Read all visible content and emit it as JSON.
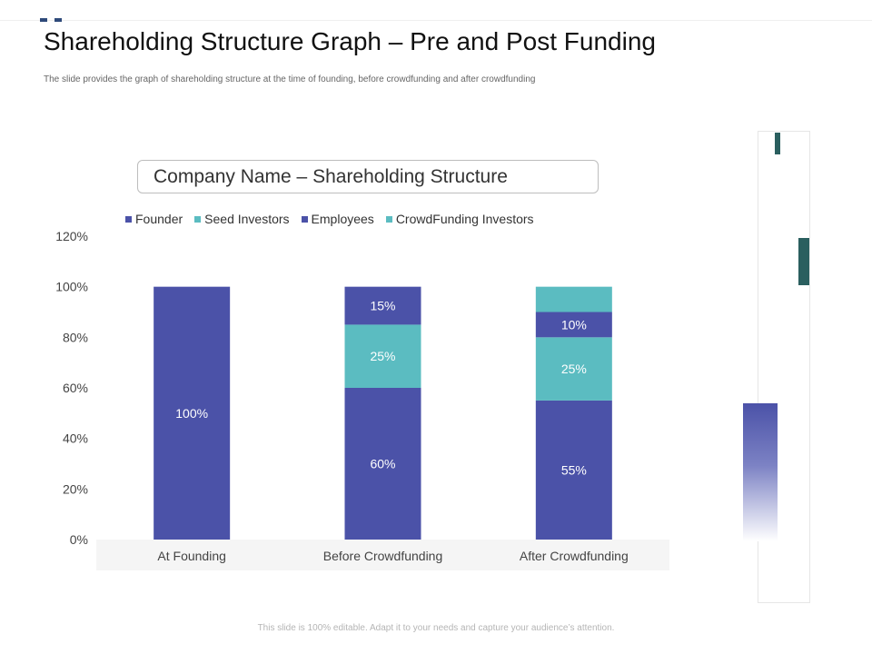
{
  "page": {
    "title": "Shareholding Structure Graph – Pre and Post Funding",
    "subtitle": "The slide provides the graph of shareholding structure at the time of founding, before crowdfunding and after crowdfunding",
    "footer": "This slide is 100% editable. Adapt it to your needs and capture your audience’s attention."
  },
  "colors": {
    "founder": "#4b52a8",
    "seed": "#5bbcc1",
    "employees": "#4b52a8",
    "crowdfunding": "#5bbcc1",
    "accent": "#2a5f5f"
  },
  "chart_data": {
    "type": "bar",
    "stacked": true,
    "title": "Company Name – Shareholding Structure",
    "categories": [
      "At Founding",
      "Before Crowdfunding",
      "After Crowdfunding"
    ],
    "series": [
      {
        "name": "Founder",
        "values": [
          100,
          60,
          55
        ],
        "labels": [
          "100%",
          "60%",
          "55%"
        ]
      },
      {
        "name": "Seed Investors",
        "values": [
          0,
          25,
          25
        ],
        "labels": [
          "",
          "25%",
          "25%"
        ]
      },
      {
        "name": "Employees",
        "values": [
          0,
          15,
          10
        ],
        "labels": [
          "",
          "15%",
          "10%"
        ]
      },
      {
        "name": "CrowdFunding Investors",
        "values": [
          0,
          0,
          10
        ],
        "labels": [
          "",
          "",
          ""
        ]
      }
    ],
    "ylim": [
      0,
      120
    ],
    "yticks": [
      "0%",
      "20%",
      "40%",
      "60%",
      "80%",
      "100%",
      "120%"
    ],
    "legend_position": "top",
    "grid": false
  }
}
